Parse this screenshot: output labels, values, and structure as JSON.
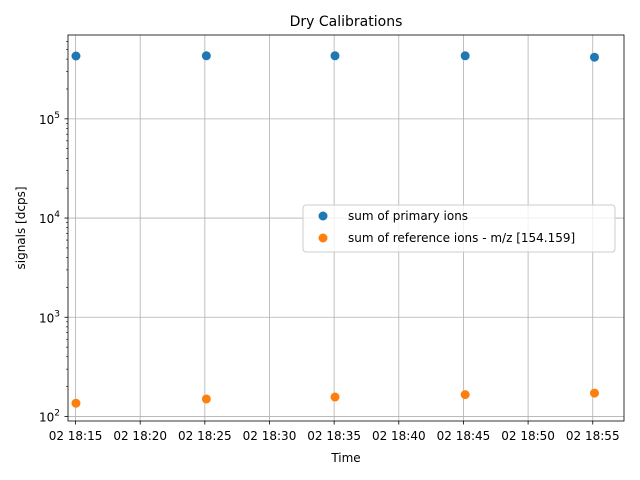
{
  "chart_data": {
    "type": "scatter",
    "title": "Dry Calibrations",
    "xlabel": "Time",
    "ylabel": "signals [dcps]",
    "y_scale": "log",
    "ylim": [
      90,
      700000
    ],
    "xlim": [
      "18:14:25",
      "18:57:25"
    ],
    "grid": true,
    "legend_position": "center-right",
    "x_tick_values": [
      "18:15",
      "18:20",
      "18:25",
      "18:30",
      "18:35",
      "18:40",
      "18:45",
      "18:50",
      "18:55"
    ],
    "x_tick_labels": [
      "02 18:15",
      "02 18:20",
      "02 18:25",
      "02 18:30",
      "02 18:35",
      "02 18:40",
      "02 18:45",
      "02 18:50",
      "02 18:55"
    ],
    "y_tick_values": [
      100,
      1000,
      10000,
      100000
    ],
    "y_tick_labels": [
      {
        "base": "10",
        "exp": "2"
      },
      {
        "base": "10",
        "exp": "3"
      },
      {
        "base": "10",
        "exp": "4"
      },
      {
        "base": "10",
        "exp": "5"
      }
    ],
    "series": [
      {
        "name": "sum of primary ions",
        "color": "#1f77b4",
        "x": [
          "18:15:02",
          "18:25:07",
          "18:35:04",
          "18:45:08",
          "18:55:08"
        ],
        "y": [
          430000,
          432000,
          432000,
          432000,
          418000
        ]
      },
      {
        "name": "sum of reference ions - m/z [154.159]",
        "color": "#ff7f0e",
        "x": [
          "18:15:02",
          "18:25:07",
          "18:35:04",
          "18:45:08",
          "18:55:08"
        ],
        "y": [
          136,
          150,
          157,
          166,
          172
        ]
      }
    ]
  }
}
